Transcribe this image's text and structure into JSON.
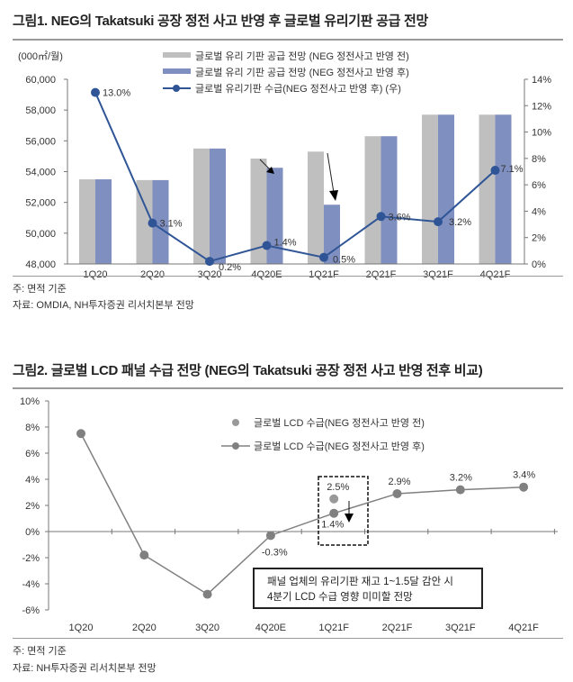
{
  "figure1": {
    "title": "그림1. NEG의 Takatsuki 공장 정전 사고 반영 후 글로벌 유리기판 공급 전망",
    "note": "주: 면적 기준",
    "source": "자료: OMDIA, NH투자증권 리서치본부 전망"
  },
  "figure2": {
    "title": "그림2. 글로벌 LCD 패널 수급 전망 (NEG의 Takatsuki 공장 정전 사고 반영 전후 비교)",
    "note": "주: 면적 기준",
    "source": "자료: NH투자증권 리서치본부 전망",
    "annotation_line1": "패널 업체의 유리기판 재고 1~1.5달 감안 시",
    "annotation_line2": "4분기 LCD 수급 영향 미미할 전망"
  },
  "chart_data": [
    {
      "type": "bar",
      "title": "그림1. NEG의 Takatsuki 공장 정전 사고 반영 후 글로벌 유리기판 공급 전망",
      "ylabel": "(000㎡/월)",
      "categories": [
        "1Q20",
        "2Q20",
        "3Q20",
        "4Q20E",
        "1Q21F",
        "2Q21F",
        "3Q21F",
        "4Q21F"
      ],
      "ylim": [
        48000,
        60000
      ],
      "yticks": [
        "48,000",
        "50,000",
        "52,000",
        "54,000",
        "56,000",
        "58,000",
        "60,000"
      ],
      "y2lim": [
        0,
        14
      ],
      "y2ticks": [
        "0%",
        "2%",
        "4%",
        "6%",
        "8%",
        "10%",
        "12%",
        "14%"
      ],
      "series": [
        {
          "name": "글로벌 유리 기판 공급 전망 (NEG 정전사고 반영 전)",
          "type": "bar",
          "color": "#bfbfbf",
          "values": [
            53500,
            53450,
            55500,
            54850,
            55300,
            56300,
            57700,
            57700
          ]
        },
        {
          "name": "글로벌 유리 기판 공급 전망 (NEG 정전사고 반영 후)",
          "type": "bar",
          "color": "#7f8fbf",
          "values": [
            53500,
            53450,
            55500,
            54250,
            51850,
            56300,
            57700,
            57700
          ]
        },
        {
          "name": "글로벌 유리기판 수급(NEG 정전사고 반영 후) (우)",
          "type": "line",
          "axis": "right",
          "color": "#2f5597",
          "values": [
            13.0,
            3.1,
            0.2,
            1.4,
            0.5,
            3.6,
            3.2,
            7.1
          ],
          "labels": [
            "13.0%",
            "3.1%",
            "0.2%",
            "1.4%",
            "0.5%",
            "3.6%",
            "3.2%",
            "7.1%"
          ]
        }
      ],
      "legend": "top-center"
    },
    {
      "type": "line",
      "title": "그림2. 글로벌 LCD 패널 수급 전망 (NEG의 Takatsuki 공장 정전 사고 반영 전후 비교)",
      "categories": [
        "1Q20",
        "2Q20",
        "3Q20",
        "4Q20E",
        "1Q21F",
        "2Q21F",
        "3Q21F",
        "4Q21F"
      ],
      "ylim": [
        -6,
        10
      ],
      "yticks": [
        "-6%",
        "-4%",
        "-2%",
        "0%",
        "2%",
        "4%",
        "6%",
        "8%",
        "10%"
      ],
      "series": [
        {
          "name": "글로벌 LCD 수급(NEG 정전사고 반영 전)",
          "type": "scatter",
          "color": "#999999",
          "values": [
            null,
            null,
            null,
            null,
            2.5,
            null,
            null,
            null
          ],
          "labels": [
            null,
            null,
            null,
            null,
            "2.5%",
            null,
            null,
            null
          ]
        },
        {
          "name": "글로벌 LCD 수급(NEG 정전사고 반영 후)",
          "type": "line",
          "color": "#808080",
          "values": [
            7.5,
            -1.8,
            -4.8,
            -0.3,
            1.4,
            2.9,
            3.2,
            3.4
          ],
          "labels": [
            null,
            null,
            null,
            "-0.3%",
            "1.4%",
            "2.9%",
            "3.2%",
            "3.4%"
          ]
        }
      ],
      "legend": "top-center"
    }
  ]
}
